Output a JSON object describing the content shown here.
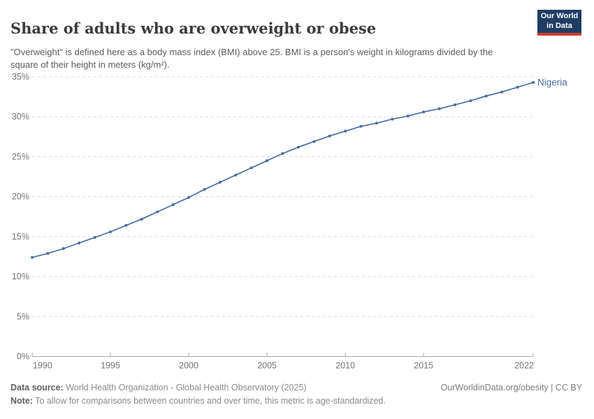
{
  "header": {
    "title": "Share of adults who are overweight or obese",
    "subtitle": "\"Overweight\" is defined here as a body mass index (BMI) above 25. BMI is a person's weight in kilograms divided by the square of their height in meters (kg/m²).",
    "logo": {
      "line1": "Our World",
      "line2": "in Data"
    }
  },
  "chart_data": {
    "type": "line",
    "title": "Share of adults who are overweight or obese",
    "xlabel": "",
    "ylabel": "",
    "xlim": [
      1990,
      2022
    ],
    "ylim": [
      0,
      35
    ],
    "grid": "horizontal-dashed",
    "legend_position": "end-of-line-label",
    "x_ticks": [
      1990,
      1995,
      2000,
      2005,
      2010,
      2015,
      2022
    ],
    "y_ticks": [
      0,
      5,
      10,
      15,
      20,
      25,
      30,
      35
    ],
    "y_tick_suffix": "%",
    "x": [
      1990,
      1991,
      1992,
      1993,
      1994,
      1995,
      1996,
      1997,
      1998,
      1999,
      2000,
      2001,
      2002,
      2003,
      2004,
      2005,
      2006,
      2007,
      2008,
      2009,
      2010,
      2011,
      2012,
      2013,
      2014,
      2015,
      2016,
      2017,
      2018,
      2019,
      2020,
      2021,
      2022
    ],
    "series": [
      {
        "name": "Nigeria",
        "values": [
          12.4,
          12.9,
          13.5,
          14.2,
          14.9,
          15.6,
          16.4,
          17.2,
          18.1,
          19.0,
          19.9,
          20.9,
          21.8,
          22.7,
          23.6,
          24.5,
          25.4,
          26.2,
          26.9,
          27.6,
          28.2,
          28.8,
          29.2,
          29.7,
          30.1,
          30.6,
          31.0,
          31.5,
          32.0,
          32.6,
          33.1,
          33.7,
          34.3
        ]
      }
    ]
  },
  "colors": {
    "series": "#4c6ba3",
    "grid": "#dcdcdc",
    "axis": "#a8a8a8",
    "tick_text": "#737373",
    "logo_bg": "#1d3d63",
    "logo_red": "#cf3a33"
  },
  "footer": {
    "data_source_label": "Data source:",
    "data_source_value": " World Health Organization - Global Health Observatory (2025)",
    "link": "OurWorldinData.org/obesity | CC BY",
    "note_label": "Note:",
    "note_value": " To allow for comparisons between countries and over time, this metric is age-standardized."
  }
}
